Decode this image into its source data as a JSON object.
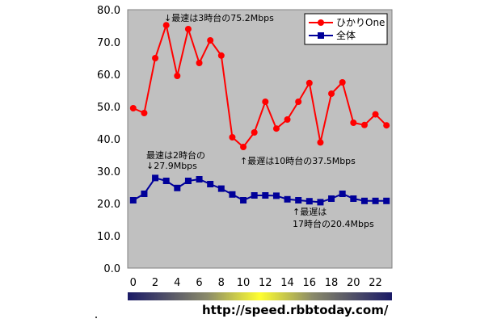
{
  "chart_data": {
    "type": "line",
    "x": [
      0,
      1,
      2,
      3,
      4,
      5,
      6,
      7,
      8,
      9,
      10,
      11,
      12,
      13,
      14,
      15,
      16,
      17,
      18,
      19,
      20,
      21,
      22,
      23
    ],
    "x_tick_labels": [
      "0",
      "2",
      "4",
      "6",
      "8",
      "10",
      "12",
      "14",
      "16",
      "18",
      "20",
      "22"
    ],
    "y_tick_labels": [
      "0.0",
      "10.0",
      "20.0",
      "30.0",
      "40.0",
      "50.0",
      "60.0",
      "70.0",
      "80.0"
    ],
    "ylim": [
      0,
      80
    ],
    "xlim": [
      -0.5,
      23.5
    ],
    "grid": false,
    "legend_position": "top-right",
    "series": [
      {
        "name": "ひかりOne",
        "color": "#ff0000",
        "marker": "circle",
        "values": [
          49.5,
          48.0,
          65.0,
          75.2,
          59.5,
          74.0,
          63.5,
          70.5,
          65.8,
          40.5,
          37.5,
          42.0,
          51.5,
          43.2,
          46.0,
          51.5,
          57.3,
          38.9,
          54.0,
          57.5,
          45.0,
          44.3,
          47.6,
          44.2
        ]
      },
      {
        "name": "全体",
        "color": "#000099",
        "marker": "square",
        "values": [
          21.0,
          23.0,
          27.9,
          27.0,
          24.8,
          27.0,
          27.5,
          26.0,
          24.6,
          22.8,
          21.0,
          22.5,
          22.5,
          22.4,
          21.3,
          21.0,
          20.7,
          20.4,
          21.5,
          23.0,
          21.5,
          20.8,
          20.8,
          20.8
        ]
      }
    ],
    "annotations": [
      {
        "lines": [
          "↓最速は3時台の75.2Mbps"
        ]
      },
      {
        "lines": [
          "最速は2時台の",
          "↓27.9Mbps"
        ]
      },
      {
        "lines": [
          "↑最遅は10時台の37.5Mbps"
        ]
      },
      {
        "lines": [
          "↑最遅は",
          "17時台の20.4Mbps"
        ]
      }
    ]
  },
  "source": "http://speed.rbbtoday.com/"
}
